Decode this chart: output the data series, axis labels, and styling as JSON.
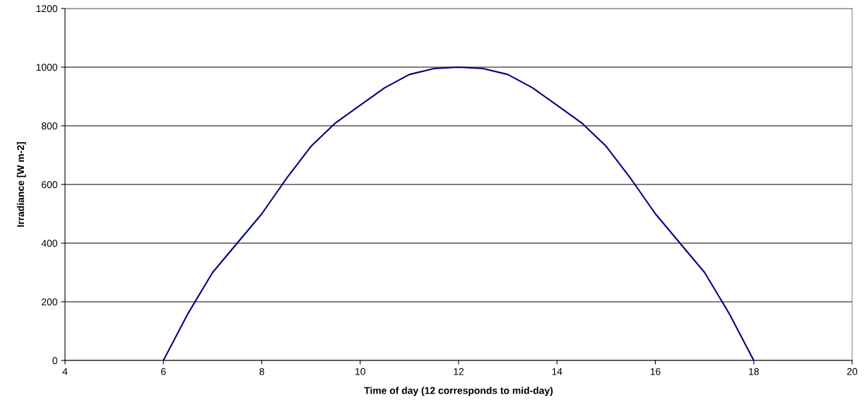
{
  "chart_data": {
    "type": "line",
    "xlabel": "Time of day (12 corresponds to mid-day)",
    "ylabel": "Irradiance [W m-2]",
    "series": [
      {
        "color": "#000080",
        "x": [
          6,
          6.5,
          7,
          7.5,
          8,
          8.5,
          9,
          9.5,
          10,
          10.5,
          11,
          11.5,
          12,
          12.5,
          13,
          13.5,
          14,
          14.5,
          15,
          15.5,
          16,
          16.5,
          17,
          17.5,
          18
        ],
        "values": [
          0,
          160,
          300,
          400,
          500,
          620,
          730,
          810,
          870,
          930,
          975,
          995,
          1000,
          995,
          975,
          930,
          870,
          810,
          730,
          620,
          500,
          400,
          300,
          160,
          0
        ]
      }
    ],
    "xlim": [
      4,
      20
    ],
    "xticks": [
      4,
      6,
      8,
      10,
      12,
      14,
      16,
      18,
      20
    ],
    "ylim": [
      0,
      1200
    ],
    "yticks": [
      0,
      200,
      400,
      600,
      800,
      1000,
      1200
    ],
    "grid": "y",
    "marker": "none",
    "line_style": "solid",
    "legend": false
  }
}
